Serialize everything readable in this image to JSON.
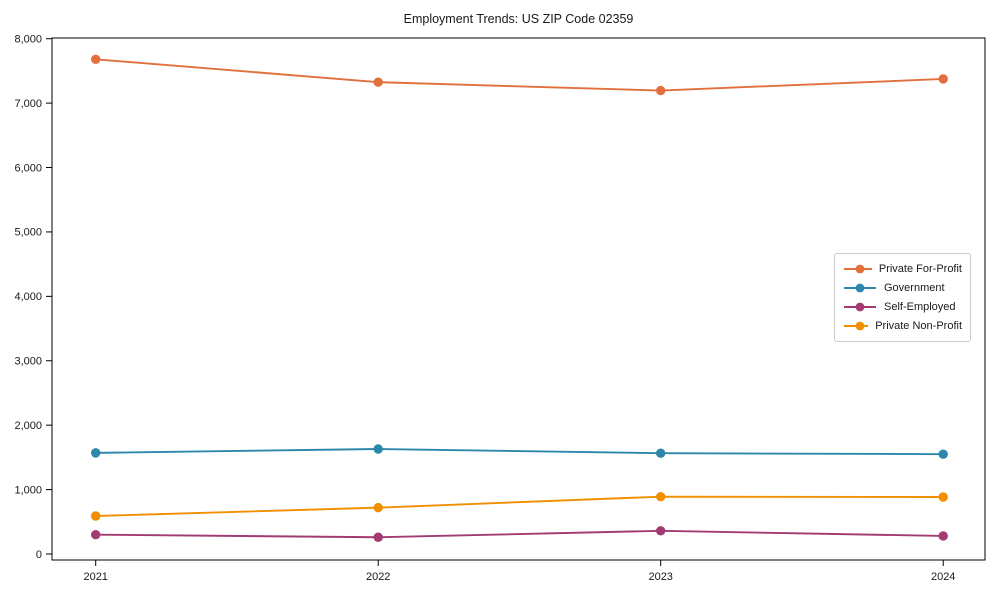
{
  "chart_data": {
    "type": "line",
    "title": "Employment Trends: US ZIP Code 02359",
    "xlabel": "",
    "ylabel": "",
    "categories": [
      "2021",
      "2022",
      "2023",
      "2024"
    ],
    "series": [
      {
        "name": "Private For-Profit",
        "color": "#E1703C",
        "values": [
          7680,
          7325,
          7195,
          7375
        ]
      },
      {
        "name": "Government",
        "color": "#2E86AB",
        "values": [
          1570,
          1630,
          1565,
          1550
        ]
      },
      {
        "name": "Self-Employed",
        "color": "#A23B72",
        "values": [
          300,
          260,
          360,
          280
        ]
      },
      {
        "name": "Private Non-Profit",
        "color": "#F18F01",
        "values": [
          590,
          720,
          890,
          885
        ]
      }
    ],
    "ylim": [
      0,
      8000
    ],
    "y_ticks": [
      0,
      1000,
      2000,
      3000,
      4000,
      5000,
      6000,
      7000,
      8000
    ],
    "y_tick_labels": [
      "0",
      "1,000",
      "2,000",
      "3,000",
      "4,000",
      "5,000",
      "6,000",
      "7,000",
      "8,000"
    ],
    "grid": false,
    "legend_position": "center-right",
    "axis_color": "#000000",
    "marker": "circle"
  }
}
